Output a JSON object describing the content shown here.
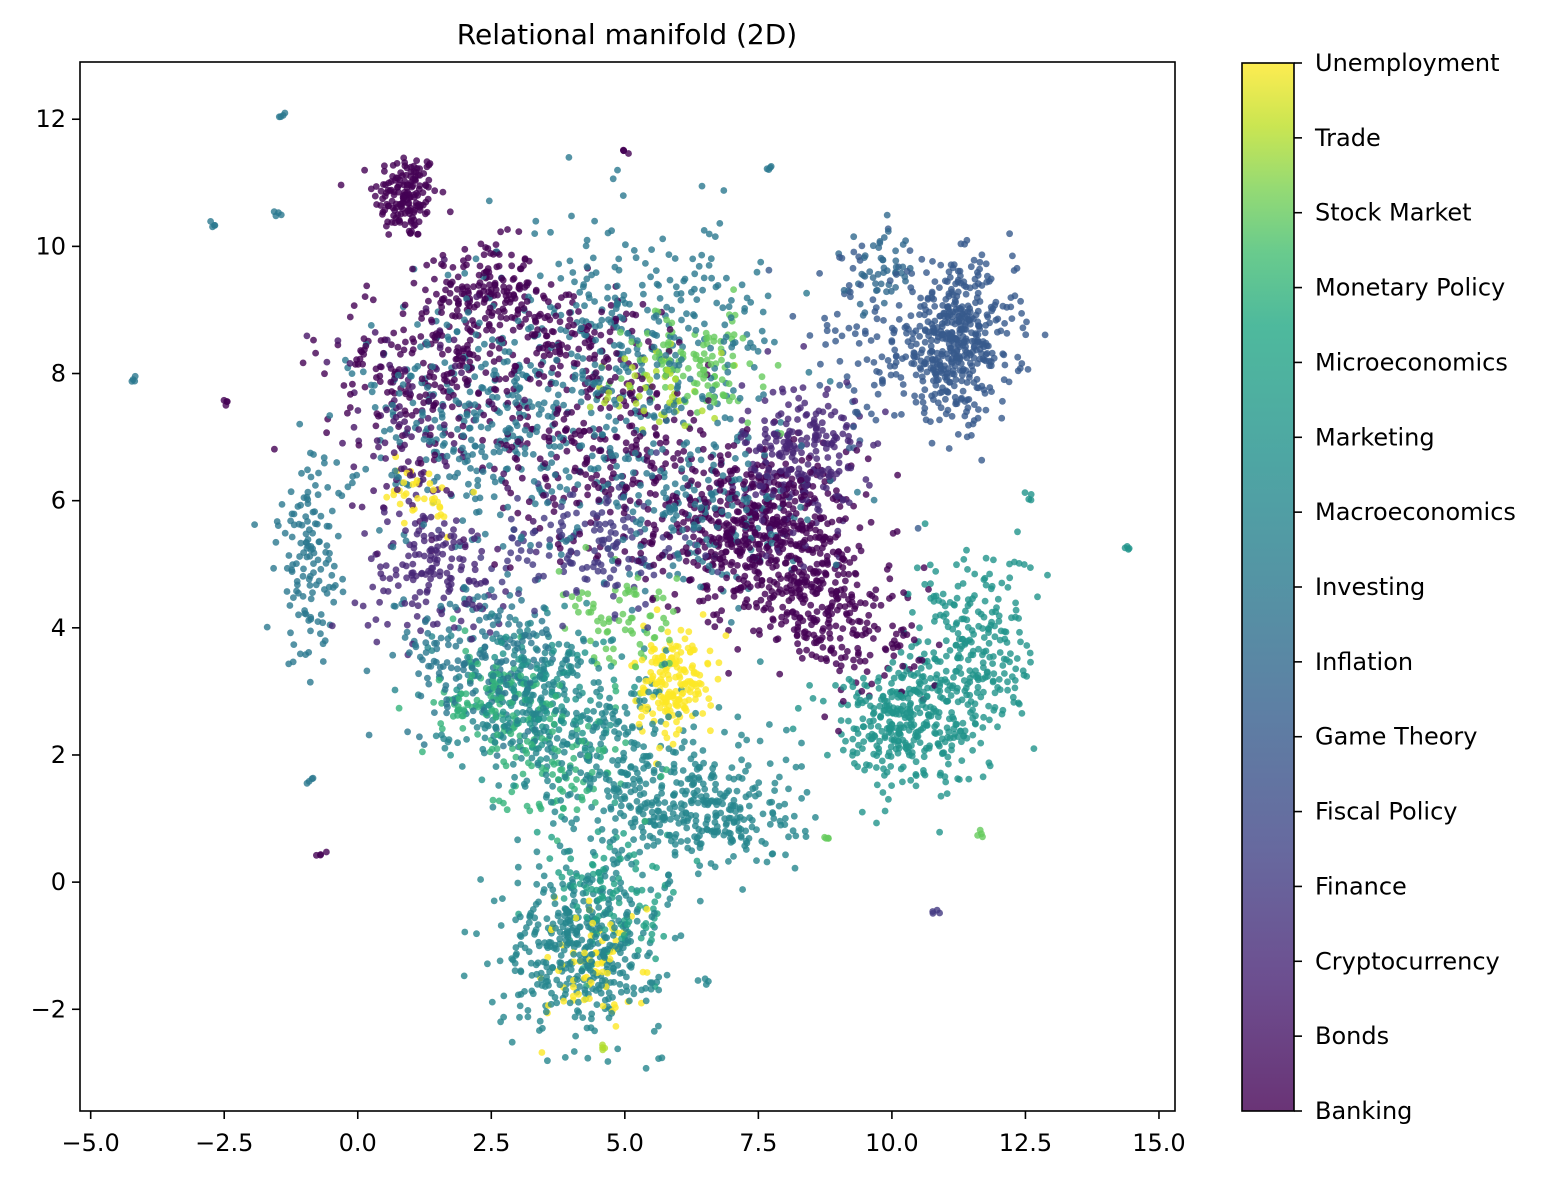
{
  "chart_data": {
    "type": "scatter",
    "title": "Relational manifold (2D)",
    "xlabel": "",
    "ylabel": "",
    "xlim": [
      -5.2,
      15.3
    ],
    "ylim": [
      -3.6,
      12.9
    ],
    "grid": false,
    "x_ticks": [
      {
        "value": -5.0,
        "label": "−5.0"
      },
      {
        "value": -2.5,
        "label": "−2.5"
      },
      {
        "value": 0.0,
        "label": "0.0"
      },
      {
        "value": 2.5,
        "label": "2.5"
      },
      {
        "value": 5.0,
        "label": "5.0"
      },
      {
        "value": 7.5,
        "label": "7.5"
      },
      {
        "value": 10.0,
        "label": "10.0"
      },
      {
        "value": 12.5,
        "label": "12.5"
      },
      {
        "value": 15.0,
        "label": "15.0"
      }
    ],
    "y_ticks": [
      {
        "value": -2,
        "label": "−2"
      },
      {
        "value": 0,
        "label": "0"
      },
      {
        "value": 2,
        "label": "2"
      },
      {
        "value": 4,
        "label": "4"
      },
      {
        "value": 6,
        "label": "6"
      },
      {
        "value": 8,
        "label": "8"
      },
      {
        "value": 10,
        "label": "10"
      },
      {
        "value": 12,
        "label": "12"
      }
    ],
    "colorbar": {
      "colormap": "viridis",
      "alpha": 0.8,
      "range": [
        0,
        14
      ],
      "categories": [
        "Banking",
        "Bonds",
        "Cryptocurrency",
        "Finance",
        "Fiscal Policy",
        "Game Theory",
        "Inflation",
        "Investing",
        "Macroeconomics",
        "Marketing",
        "Microeconomics",
        "Monetary Policy",
        "Stock Market",
        "Trade",
        "Unemployment"
      ]
    },
    "clusters": [
      {
        "category": 0,
        "x": 0.9,
        "y": 10.8,
        "sx": 0.3,
        "sy": 0.35,
        "n": 160
      },
      {
        "category": 0,
        "x": 2.4,
        "y": 9.3,
        "sx": 0.45,
        "sy": 0.4,
        "n": 140
      },
      {
        "category": 0,
        "x": 7.4,
        "y": 5.6,
        "sx": 0.9,
        "sy": 0.6,
        "n": 520
      },
      {
        "category": 0,
        "x": 8.4,
        "y": 4.6,
        "sx": 0.7,
        "sy": 0.6,
        "n": 260
      },
      {
        "category": 0,
        "x": 4.6,
        "y": 6.9,
        "sx": 1.0,
        "sy": 0.8,
        "n": 260
      },
      {
        "category": 0,
        "x": 1.4,
        "y": 8.1,
        "sx": 1.0,
        "sy": 0.7,
        "n": 220
      },
      {
        "category": 0,
        "x": 9.7,
        "y": 3.7,
        "sx": 0.6,
        "sy": 0.5,
        "n": 80
      },
      {
        "category": 0,
        "x": 3.8,
        "y": 8.7,
        "sx": 0.8,
        "sy": 0.4,
        "n": 130
      },
      {
        "category": 2,
        "x": 8.3,
        "y": 6.7,
        "sx": 0.55,
        "sy": 0.6,
        "n": 240
      },
      {
        "category": 2,
        "x": 1.4,
        "y": 4.9,
        "sx": 0.7,
        "sy": 0.5,
        "n": 160
      },
      {
        "category": 3,
        "x": 4.4,
        "y": 5.3,
        "sx": 0.9,
        "sy": 0.5,
        "n": 150
      },
      {
        "category": 1,
        "x": 1.0,
        "y": 7.0,
        "sx": 0.9,
        "sy": 1.0,
        "n": 110
      },
      {
        "category": 5,
        "x": 11.2,
        "y": 8.5,
        "sx": 0.55,
        "sy": 0.6,
        "n": 460
      },
      {
        "category": 5,
        "x": 9.5,
        "y": 8.3,
        "sx": 0.6,
        "sy": 0.8,
        "n": 90
      },
      {
        "category": 6,
        "x": 9.8,
        "y": 9.6,
        "sx": 0.3,
        "sy": 0.3,
        "n": 50
      },
      {
        "category": 7,
        "x": 5.2,
        "y": 8.4,
        "sx": 1.4,
        "sy": 1.0,
        "n": 380
      },
      {
        "category": 7,
        "x": 2.4,
        "y": 7.1,
        "sx": 1.2,
        "sy": 1.0,
        "n": 340
      },
      {
        "category": 7,
        "x": -0.9,
        "y": 5.0,
        "sx": 0.3,
        "sy": 0.8,
        "n": 130
      },
      {
        "category": 7,
        "x": 6.4,
        "y": 5.8,
        "sx": 1.0,
        "sy": 0.6,
        "n": 180
      },
      {
        "category": 7,
        "x": 2.3,
        "y": 3.5,
        "sx": 0.8,
        "sy": 0.6,
        "n": 180
      },
      {
        "category": 8,
        "x": 4.2,
        "y": -1.0,
        "sx": 0.75,
        "sy": 0.65,
        "n": 420
      },
      {
        "category": 8,
        "x": 6.5,
        "y": 1.1,
        "sx": 0.9,
        "sy": 0.5,
        "n": 300
      },
      {
        "category": 8,
        "x": 4.8,
        "y": 2.0,
        "sx": 1.0,
        "sy": 0.8,
        "n": 230
      },
      {
        "category": 8,
        "x": 3.2,
        "y": 3.0,
        "sx": 0.9,
        "sy": 0.6,
        "n": 200
      },
      {
        "category": 9,
        "x": 10.2,
        "y": 2.5,
        "sx": 0.7,
        "sy": 0.5,
        "n": 320
      },
      {
        "category": 9,
        "x": 11.5,
        "y": 3.6,
        "sx": 0.6,
        "sy": 0.8,
        "n": 260
      },
      {
        "category": 9,
        "x": 3.5,
        "y": 2.9,
        "sx": 0.8,
        "sy": 0.5,
        "n": 120
      },
      {
        "category": 10,
        "x": 4.8,
        "y": -0.3,
        "sx": 0.6,
        "sy": 0.6,
        "n": 110
      },
      {
        "category": 11,
        "x": 2.6,
        "y": 2.8,
        "sx": 0.7,
        "sy": 0.4,
        "n": 120
      },
      {
        "category": 11,
        "x": 3.8,
        "y": 1.8,
        "sx": 0.6,
        "sy": 0.4,
        "n": 80
      },
      {
        "category": 12,
        "x": 6.3,
        "y": 8.2,
        "sx": 0.6,
        "sy": 0.4,
        "n": 110
      },
      {
        "category": 12,
        "x": 5.0,
        "y": 4.0,
        "sx": 0.6,
        "sy": 0.4,
        "n": 70
      },
      {
        "category": 14,
        "x": 5.9,
        "y": 3.1,
        "sx": 0.35,
        "sy": 0.4,
        "n": 180
      },
      {
        "category": 14,
        "x": 4.4,
        "y": -1.4,
        "sx": 0.5,
        "sy": 0.5,
        "n": 70
      },
      {
        "category": 14,
        "x": 1.2,
        "y": 6.1,
        "sx": 0.3,
        "sy": 0.3,
        "n": 35
      },
      {
        "category": 13,
        "x": 5.5,
        "y": 7.8,
        "sx": 0.5,
        "sy": 0.3,
        "n": 50
      }
    ],
    "outliers": [
      {
        "category": 7,
        "x": -1.4,
        "y": 12.1
      },
      {
        "category": 7,
        "x": -4.2,
        "y": 7.9
      },
      {
        "category": 7,
        "x": -2.7,
        "y": 10.35
      },
      {
        "category": 7,
        "x": -1.5,
        "y": 10.55
      },
      {
        "category": 7,
        "x": -0.9,
        "y": 1.6
      },
      {
        "category": 0,
        "x": -0.7,
        "y": 0.45
      },
      {
        "category": 0,
        "x": -2.5,
        "y": 7.55
      },
      {
        "category": 0,
        "x": 5.0,
        "y": 11.5
      },
      {
        "category": 7,
        "x": 7.7,
        "y": 11.25
      },
      {
        "category": 12,
        "x": 8.8,
        "y": 0.7
      },
      {
        "category": 12,
        "x": 11.7,
        "y": 0.75
      },
      {
        "category": 3,
        "x": 10.8,
        "y": -0.45
      },
      {
        "category": 9,
        "x": 14.4,
        "y": 5.25
      },
      {
        "category": 9,
        "x": 12.6,
        "y": 6.05
      },
      {
        "category": 8,
        "x": 6.5,
        "y": -1.55
      },
      {
        "category": 13,
        "x": 4.6,
        "y": -2.6
      }
    ]
  }
}
